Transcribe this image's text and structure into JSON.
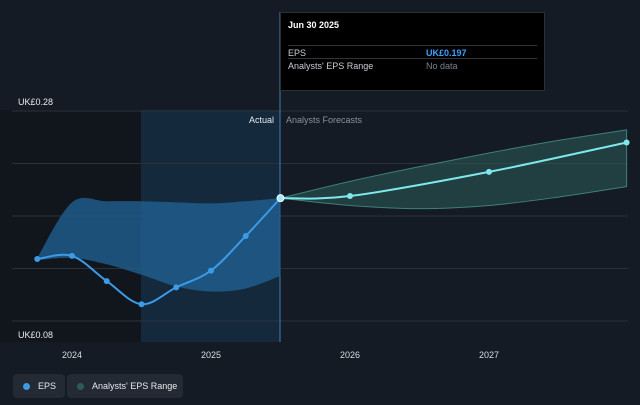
{
  "tooltip": {
    "date": "Jun 30 2025",
    "rows": [
      {
        "label": "EPS",
        "value": "UK£0.197"
      },
      {
        "label": "Analysts' EPS Range",
        "value": "No data"
      }
    ]
  },
  "labels": {
    "actual": "Actual",
    "forecast": "Analysts Forecasts",
    "y_top": "UK£0.28",
    "y_bottom": "UK£0.08"
  },
  "legend": {
    "eps": "EPS",
    "range": "Analysts' EPS Range"
  },
  "colors": {
    "background": "#151b24",
    "eps_line": "#3b9be6",
    "forecast_line": "#7ee8ec",
    "actual_band": "#1f5f91",
    "forecast_band": "#2c5b5a",
    "highlight": "#1a3a57"
  },
  "chart_data": {
    "type": "line",
    "x_ticks": [
      2024,
      2025,
      2026,
      2027
    ],
    "ylim": [
      0.08,
      0.28
    ],
    "y_ticks": [
      0.08,
      0.28
    ],
    "grid": true,
    "forecast_start": 2025.5,
    "series": [
      {
        "name": "EPS",
        "x": [
          2023.75,
          2024.0,
          2024.25,
          2024.5,
          2024.75,
          2025.0,
          2025.25,
          2025.5
        ],
        "y": [
          0.139,
          0.142,
          0.118,
          0.096,
          0.112,
          0.128,
          0.161,
          0.197
        ]
      },
      {
        "name": "EPS forecast",
        "x": [
          2025.5,
          2026.0,
          2027.0,
          2027.99
        ],
        "y": [
          0.197,
          0.199,
          0.222,
          0.25
        ]
      }
    ],
    "bands": [
      {
        "name": "Analysts' EPS Range",
        "x": [
          2023.75,
          2024.0,
          2024.25,
          2024.5,
          2024.75,
          2025.0,
          2025.25,
          2025.5
        ],
        "upper": [
          0.14,
          0.193,
          0.194,
          0.194,
          0.193,
          0.192,
          0.194,
          0.197
        ],
        "lower": [
          0.138,
          0.14,
          0.134,
          0.124,
          0.113,
          0.108,
          0.111,
          0.123
        ]
      },
      {
        "name": "Analysts' EPS Range forecast",
        "x": [
          2025.5,
          2026.0,
          2026.5,
          2027.0,
          2027.5,
          2027.99
        ],
        "upper": [
          0.197,
          0.213,
          0.227,
          0.24,
          0.252,
          0.262
        ],
        "lower": [
          0.197,
          0.19,
          0.187,
          0.19,
          0.198,
          0.208
        ]
      }
    ]
  }
}
